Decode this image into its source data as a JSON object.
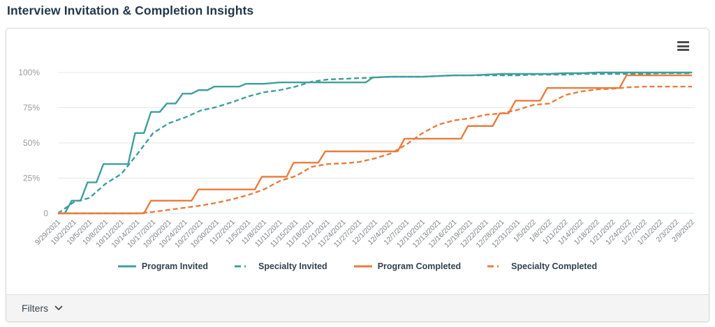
{
  "page": {
    "title": "Interview Invitation & Completion Insights"
  },
  "card": {
    "menu_icon": "hamburger-menu-icon",
    "footer": {
      "filters_label": "Filters",
      "chevron_icon": "chevron-down-icon"
    }
  },
  "colors": {
    "teal": "#409E9C",
    "orange": "#E87C3E",
    "title_text": "#233749",
    "legend_text": "#32424D",
    "y_axis_label": "#9A9A9A",
    "x_axis_label": "#7D8184",
    "gridline": "#E7E7E7",
    "axis_line": "#DFE3E6",
    "footer_bg": "#F4F4F4",
    "card_border": "#D9D9D9",
    "menu_icon": "#4D4D4D"
  },
  "chart_data": {
    "type": "line",
    "title": "",
    "xlabel": "",
    "ylabel": "",
    "ylim": [
      0,
      100
    ],
    "grid": true,
    "legend_position": "bottom",
    "y_ticks": [
      {
        "label": "0",
        "value": 0
      },
      {
        "label": "25%",
        "value": 25
      },
      {
        "label": "50%",
        "value": 50
      },
      {
        "label": "75%",
        "value": 75
      },
      {
        "label": "100%",
        "value": 100
      }
    ],
    "categories": [
      "9/29/2021",
      "10/2/2021",
      "10/5/2021",
      "10/8/2021",
      "10/11/2021",
      "10/14/2021",
      "10/17/2021",
      "10/20/2021",
      "10/24/2021",
      "10/27/2021",
      "10/30/2021",
      "11/2/2021",
      "11/5/2021",
      "11/8/2021",
      "11/11/2021",
      "11/15/2021",
      "11/18/2021",
      "11/21/2021",
      "11/24/2021",
      "11/27/2021",
      "12/1/2021",
      "12/4/2021",
      "12/7/2021",
      "12/10/2021",
      "12/13/2021",
      "12/16/2021",
      "12/19/2021",
      "12/22/2021",
      "12/28/2021",
      "12/31/2021",
      "1/5/2022",
      "1/8/2022",
      "1/11/2022",
      "1/14/2022",
      "1/18/2022",
      "1/21/2022",
      "1/24/2022",
      "1/27/2022",
      "1/31/2022",
      "2/3/2022",
      "2/9/2022"
    ],
    "series": [
      {
        "name": "Program Invited",
        "color": "#409E9C",
        "dash": "solid",
        "interp": "stepped",
        "values": [
          0,
          9,
          22,
          35,
          35,
          57,
          72,
          78,
          85,
          87.5,
          90,
          90,
          92,
          92,
          93,
          93,
          93,
          93,
          93,
          93,
          96.5,
          97,
          97,
          97,
          97.5,
          98,
          98,
          98.5,
          99,
          99,
          99,
          99,
          99.5,
          99.5,
          100,
          100,
          100,
          100,
          100,
          100,
          100
        ]
      },
      {
        "name": "Specialty Invited",
        "color": "#409E9C",
        "dash": "dashed",
        "interp": "linear",
        "values": [
          0,
          8,
          11,
          21,
          28,
          42,
          57,
          64,
          68,
          73,
          75.5,
          79,
          83,
          86,
          87.5,
          90,
          93.5,
          95,
          95.5,
          96,
          96.5,
          97,
          97,
          97,
          97.5,
          98,
          98,
          98,
          98,
          98,
          98.5,
          98.5,
          98.5,
          99,
          99,
          99,
          99,
          99,
          99.5,
          99.5,
          99.5
        ]
      },
      {
        "name": "Program Completed",
        "color": "#E87C3E",
        "dash": "solid",
        "interp": "stepped",
        "values": [
          0,
          0,
          0,
          0,
          0,
          0,
          9,
          9,
          9,
          17,
          17,
          17,
          17,
          26,
          26,
          36,
          36,
          44,
          44,
          44,
          44,
          44,
          53,
          53,
          53,
          53,
          62,
          62,
          71,
          80,
          80,
          89,
          89,
          89,
          89,
          89,
          98,
          98,
          98,
          98,
          98
        ]
      },
      {
        "name": "Specialty Completed",
        "color": "#E87C3E",
        "dash": "dashed",
        "interp": "linear",
        "values": [
          0,
          0,
          0,
          0,
          0,
          0,
          1,
          2.5,
          4,
          5.5,
          7.5,
          10,
          13,
          17,
          23,
          26.5,
          33,
          35,
          35.5,
          36.5,
          39,
          42.5,
          49,
          57,
          63,
          66,
          67.5,
          70,
          71,
          73.5,
          77,
          78,
          84,
          86.5,
          88,
          88.5,
          89.5,
          90,
          90,
          90,
          90
        ]
      }
    ]
  }
}
